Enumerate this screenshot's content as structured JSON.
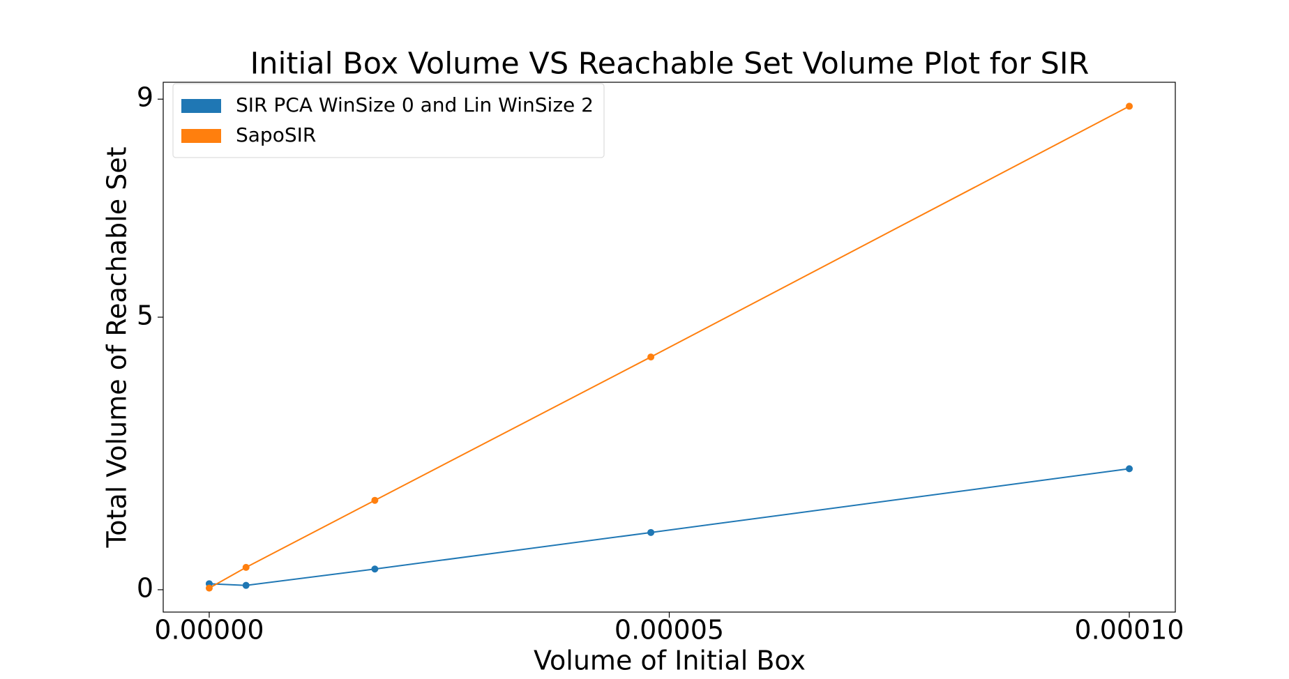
{
  "chart_data": {
    "type": "line",
    "title": "Initial Box Volume VS Reachable Set Volume Plot for SIR",
    "xlabel": "Volume of Initial Box",
    "ylabel": "Total Volume of Reachable Set",
    "x": [
      0,
      4e-06,
      1.8e-05,
      4.8e-05,
      0.0001
    ],
    "series": [
      {
        "name": "SIR PCA WinSize 0 and Lin WinSize 2",
        "color": "#1f77b4",
        "values": [
          0.11,
          0.08,
          0.38,
          1.05,
          2.22
        ]
      },
      {
        "name": "SapoSIR",
        "color": "#ff7f0e",
        "values": [
          0.03,
          0.41,
          1.64,
          4.27,
          8.87
        ]
      }
    ],
    "xlim": [
      -5e-06,
      0.000105
    ],
    "xticks": [
      {
        "value": 0,
        "label": "0.00000"
      },
      {
        "value": 5e-05,
        "label": "0.00005"
      },
      {
        "value": 0.0001,
        "label": "0.00010"
      }
    ],
    "ylim": [
      -0.41,
      9.31
    ],
    "yticks": [
      0,
      5,
      9
    ],
    "legend": "upper left"
  }
}
